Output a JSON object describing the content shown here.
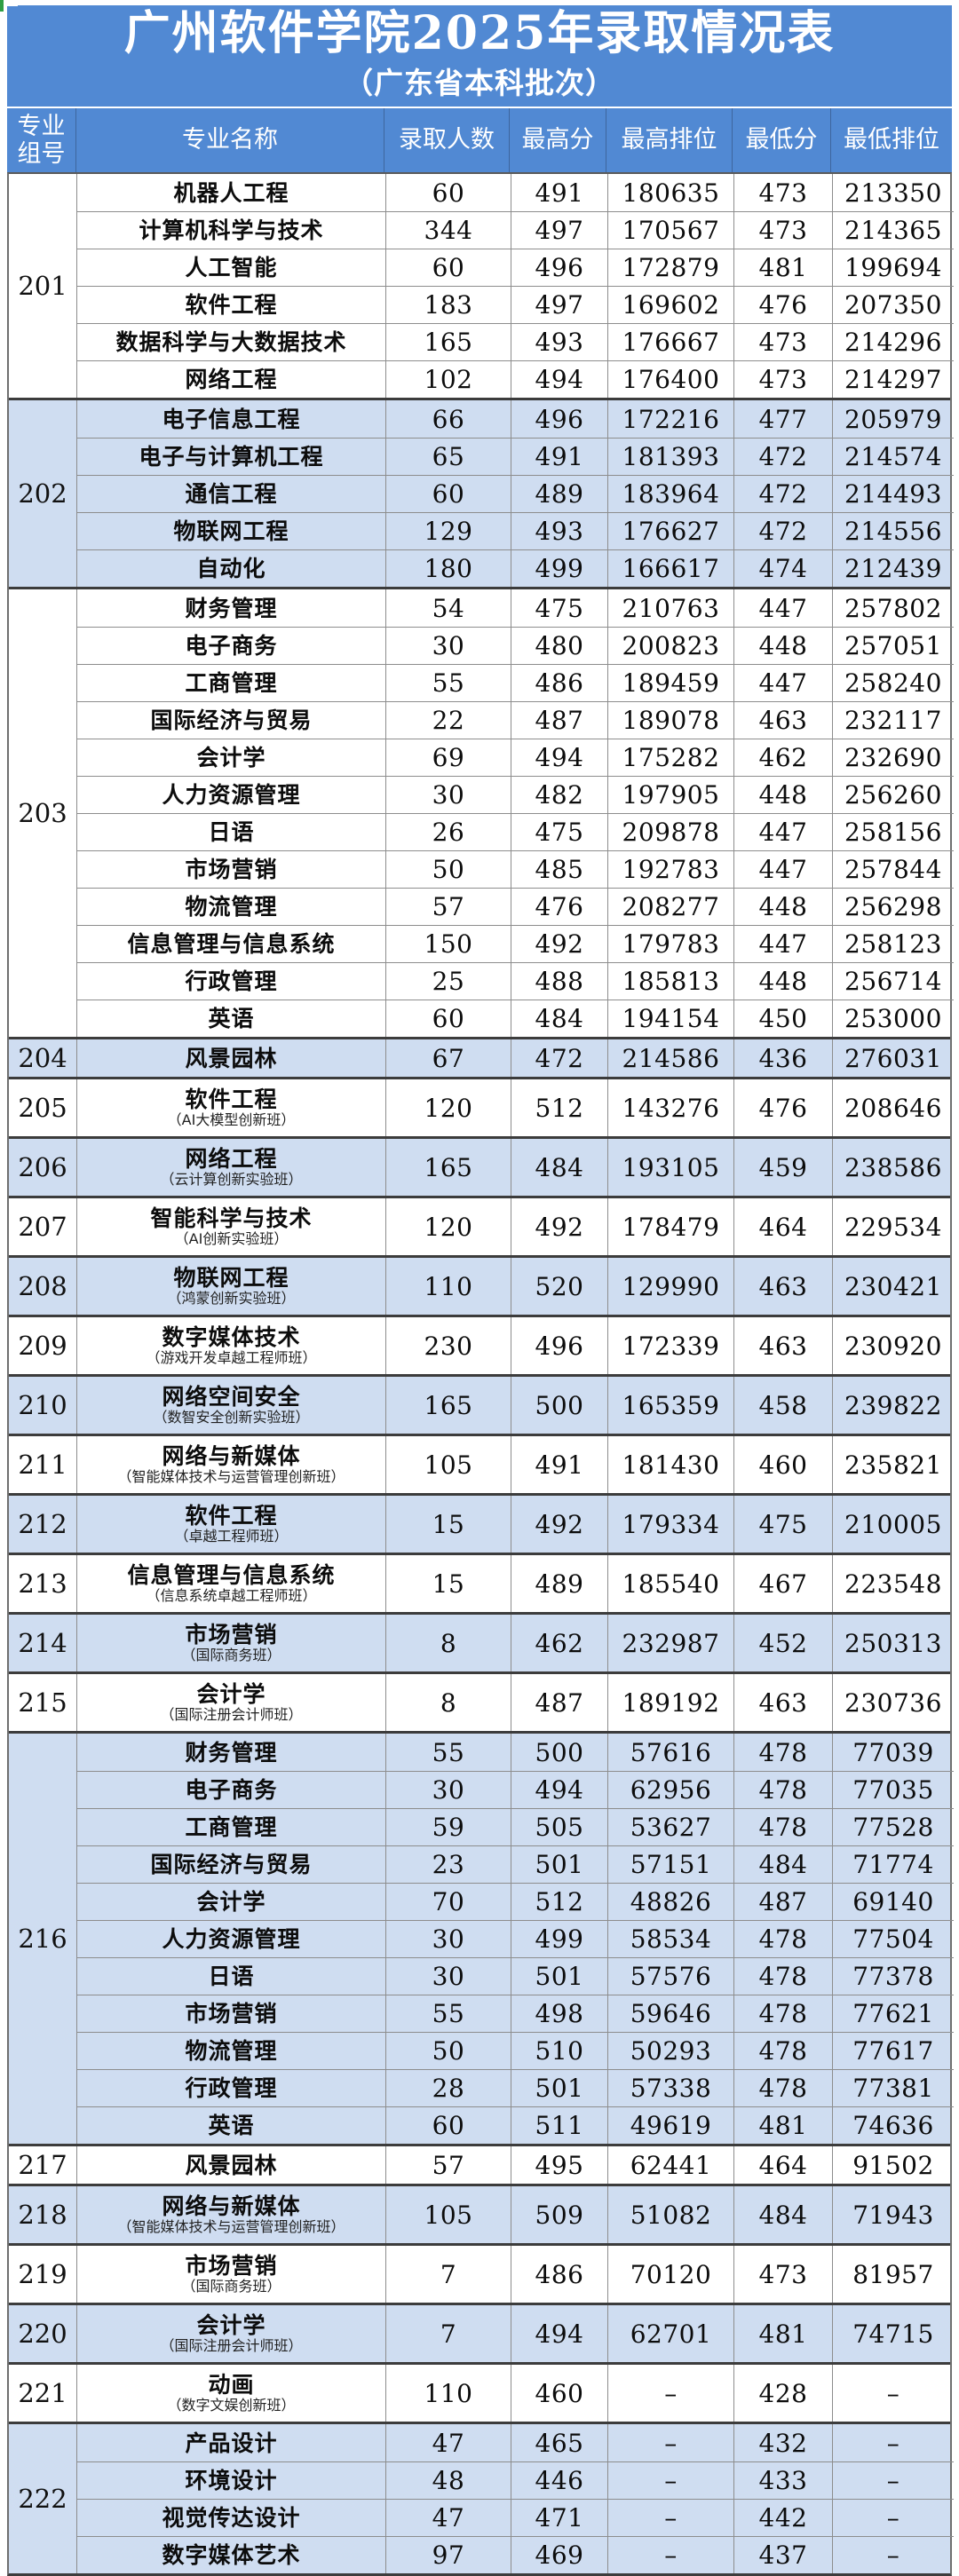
{
  "header": {
    "title": "广州软件学院2025年录取情况表",
    "subtitle": "（广东省本科批次）"
  },
  "columns": {
    "group_line1": "专业",
    "group_line2": "组号",
    "name": "专业名称",
    "admitted": "录取人数",
    "max_score": "最高分",
    "max_rank": "最高排位",
    "min_score": "最低分",
    "min_rank": "最低排位"
  },
  "colors": {
    "header_blue": "#5189d3",
    "row_blue": "#cfddf1",
    "row_white": "#ffffff",
    "grid_thin": "#8d8d8d",
    "grid_thick": "#3c3c3c",
    "artifact_green": "#2f9e44",
    "text_dark": "#0c0c0c",
    "header_text": "#ffffff"
  },
  "groups": [
    {
      "no": "201",
      "tint": "white",
      "rows": [
        {
          "name": "机器人工程",
          "sub": "",
          "admitted": "60",
          "max_score": "491",
          "max_rank": "180635",
          "min_score": "473",
          "min_rank": "213350"
        },
        {
          "name": "计算机科学与技术",
          "sub": "",
          "admitted": "344",
          "max_score": "497",
          "max_rank": "170567",
          "min_score": "473",
          "min_rank": "214365"
        },
        {
          "name": "人工智能",
          "sub": "",
          "admitted": "60",
          "max_score": "496",
          "max_rank": "172879",
          "min_score": "481",
          "min_rank": "199694"
        },
        {
          "name": "软件工程",
          "sub": "",
          "admitted": "183",
          "max_score": "497",
          "max_rank": "169602",
          "min_score": "476",
          "min_rank": "207350"
        },
        {
          "name": "数据科学与大数据技术",
          "sub": "",
          "admitted": "165",
          "max_score": "493",
          "max_rank": "176667",
          "min_score": "473",
          "min_rank": "214296"
        },
        {
          "name": "网络工程",
          "sub": "",
          "admitted": "102",
          "max_score": "494",
          "max_rank": "176400",
          "min_score": "473",
          "min_rank": "214297"
        }
      ]
    },
    {
      "no": "202",
      "tint": "blue",
      "rows": [
        {
          "name": "电子信息工程",
          "sub": "",
          "admitted": "66",
          "max_score": "496",
          "max_rank": "172216",
          "min_score": "477",
          "min_rank": "205979"
        },
        {
          "name": "电子与计算机工程",
          "sub": "",
          "admitted": "65",
          "max_score": "491",
          "max_rank": "181393",
          "min_score": "472",
          "min_rank": "214574"
        },
        {
          "name": "通信工程",
          "sub": "",
          "admitted": "60",
          "max_score": "489",
          "max_rank": "183964",
          "min_score": "472",
          "min_rank": "214493"
        },
        {
          "name": "物联网工程",
          "sub": "",
          "admitted": "129",
          "max_score": "493",
          "max_rank": "176627",
          "min_score": "472",
          "min_rank": "214556"
        },
        {
          "name": "自动化",
          "sub": "",
          "admitted": "180",
          "max_score": "499",
          "max_rank": "166617",
          "min_score": "474",
          "min_rank": "212439"
        }
      ]
    },
    {
      "no": "203",
      "tint": "white",
      "rows": [
        {
          "name": "财务管理",
          "sub": "",
          "admitted": "54",
          "max_score": "475",
          "max_rank": "210763",
          "min_score": "447",
          "min_rank": "257802"
        },
        {
          "name": "电子商务",
          "sub": "",
          "admitted": "30",
          "max_score": "480",
          "max_rank": "200823",
          "min_score": "448",
          "min_rank": "257051"
        },
        {
          "name": "工商管理",
          "sub": "",
          "admitted": "55",
          "max_score": "486",
          "max_rank": "189459",
          "min_score": "447",
          "min_rank": "258240"
        },
        {
          "name": "国际经济与贸易",
          "sub": "",
          "admitted": "22",
          "max_score": "487",
          "max_rank": "189078",
          "min_score": "463",
          "min_rank": "232117"
        },
        {
          "name": "会计学",
          "sub": "",
          "admitted": "69",
          "max_score": "494",
          "max_rank": "175282",
          "min_score": "462",
          "min_rank": "232690"
        },
        {
          "name": "人力资源管理",
          "sub": "",
          "admitted": "30",
          "max_score": "482",
          "max_rank": "197905",
          "min_score": "448",
          "min_rank": "256260"
        },
        {
          "name": "日语",
          "sub": "",
          "admitted": "26",
          "max_score": "475",
          "max_rank": "209878",
          "min_score": "447",
          "min_rank": "258156"
        },
        {
          "name": "市场营销",
          "sub": "",
          "admitted": "50",
          "max_score": "485",
          "max_rank": "192783",
          "min_score": "447",
          "min_rank": "257844"
        },
        {
          "name": "物流管理",
          "sub": "",
          "admitted": "57",
          "max_score": "476",
          "max_rank": "208277",
          "min_score": "448",
          "min_rank": "256298"
        },
        {
          "name": "信息管理与信息系统",
          "sub": "",
          "admitted": "150",
          "max_score": "492",
          "max_rank": "179783",
          "min_score": "447",
          "min_rank": "258123"
        },
        {
          "name": "行政管理",
          "sub": "",
          "admitted": "25",
          "max_score": "488",
          "max_rank": "185813",
          "min_score": "448",
          "min_rank": "256714"
        },
        {
          "name": "英语",
          "sub": "",
          "admitted": "60",
          "max_score": "484",
          "max_rank": "194154",
          "min_score": "450",
          "min_rank": "253000"
        }
      ]
    },
    {
      "no": "204",
      "tint": "blue",
      "rows": [
        {
          "name": "风景园林",
          "sub": "",
          "admitted": "67",
          "max_score": "472",
          "max_rank": "214586",
          "min_score": "436",
          "min_rank": "276031"
        }
      ]
    },
    {
      "no": "205",
      "tint": "white",
      "rows": [
        {
          "name": "软件工程",
          "sub": "（AI大模型创新班）",
          "admitted": "120",
          "max_score": "512",
          "max_rank": "143276",
          "min_score": "476",
          "min_rank": "208646"
        }
      ]
    },
    {
      "no": "206",
      "tint": "blue",
      "rows": [
        {
          "name": "网络工程",
          "sub": "（云计算创新实验班）",
          "admitted": "165",
          "max_score": "484",
          "max_rank": "193105",
          "min_score": "459",
          "min_rank": "238586"
        }
      ]
    },
    {
      "no": "207",
      "tint": "white",
      "rows": [
        {
          "name": "智能科学与技术",
          "sub": "（AI创新实验班）",
          "admitted": "120",
          "max_score": "492",
          "max_rank": "178479",
          "min_score": "464",
          "min_rank": "229534"
        }
      ]
    },
    {
      "no": "208",
      "tint": "blue",
      "rows": [
        {
          "name": "物联网工程",
          "sub": "（鸿蒙创新实验班）",
          "admitted": "110",
          "max_score": "520",
          "max_rank": "129990",
          "min_score": "463",
          "min_rank": "230421"
        }
      ]
    },
    {
      "no": "209",
      "tint": "white",
      "rows": [
        {
          "name": "数字媒体技术",
          "sub": "（游戏开发卓越工程师班）",
          "admitted": "230",
          "max_score": "496",
          "max_rank": "172339",
          "min_score": "463",
          "min_rank": "230920"
        }
      ]
    },
    {
      "no": "210",
      "tint": "blue",
      "rows": [
        {
          "name": "网络空间安全",
          "sub": "（数智安全创新实验班）",
          "admitted": "165",
          "max_score": "500",
          "max_rank": "165359",
          "min_score": "458",
          "min_rank": "239822"
        }
      ]
    },
    {
      "no": "211",
      "tint": "white",
      "rows": [
        {
          "name": "网络与新媒体",
          "sub": "（智能媒体技术与运营管理创新班）",
          "admitted": "105",
          "max_score": "491",
          "max_rank": "181430",
          "min_score": "460",
          "min_rank": "235821"
        }
      ]
    },
    {
      "no": "212",
      "tint": "blue",
      "rows": [
        {
          "name": "软件工程",
          "sub": "（卓越工程师班）",
          "admitted": "15",
          "max_score": "492",
          "max_rank": "179334",
          "min_score": "475",
          "min_rank": "210005"
        }
      ]
    },
    {
      "no": "213",
      "tint": "white",
      "rows": [
        {
          "name": "信息管理与信息系统",
          "sub": "（信息系统卓越工程师班）",
          "admitted": "15",
          "max_score": "489",
          "max_rank": "185540",
          "min_score": "467",
          "min_rank": "223548"
        }
      ]
    },
    {
      "no": "214",
      "tint": "blue",
      "rows": [
        {
          "name": "市场营销",
          "sub": "（国际商务班）",
          "admitted": "8",
          "max_score": "462",
          "max_rank": "232987",
          "min_score": "452",
          "min_rank": "250313"
        }
      ]
    },
    {
      "no": "215",
      "tint": "white",
      "rows": [
        {
          "name": "会计学",
          "sub": "（国际注册会计师班）",
          "admitted": "8",
          "max_score": "487",
          "max_rank": "189192",
          "min_score": "463",
          "min_rank": "230736"
        }
      ]
    },
    {
      "no": "216",
      "tint": "blue",
      "rows": [
        {
          "name": "财务管理",
          "sub": "",
          "admitted": "55",
          "max_score": "500",
          "max_rank": "57616",
          "min_score": "478",
          "min_rank": "77039"
        },
        {
          "name": "电子商务",
          "sub": "",
          "admitted": "30",
          "max_score": "494",
          "max_rank": "62956",
          "min_score": "478",
          "min_rank": "77035"
        },
        {
          "name": "工商管理",
          "sub": "",
          "admitted": "59",
          "max_score": "505",
          "max_rank": "53627",
          "min_score": "478",
          "min_rank": "77528"
        },
        {
          "name": "国际经济与贸易",
          "sub": "",
          "admitted": "23",
          "max_score": "501",
          "max_rank": "57151",
          "min_score": "484",
          "min_rank": "71774"
        },
        {
          "name": "会计学",
          "sub": "",
          "admitted": "70",
          "max_score": "512",
          "max_rank": "48826",
          "min_score": "487",
          "min_rank": "69140"
        },
        {
          "name": "人力资源管理",
          "sub": "",
          "admitted": "30",
          "max_score": "499",
          "max_rank": "58534",
          "min_score": "478",
          "min_rank": "77504"
        },
        {
          "name": "日语",
          "sub": "",
          "admitted": "30",
          "max_score": "501",
          "max_rank": "57576",
          "min_score": "478",
          "min_rank": "77378"
        },
        {
          "name": "市场营销",
          "sub": "",
          "admitted": "55",
          "max_score": "498",
          "max_rank": "59646",
          "min_score": "478",
          "min_rank": "77621"
        },
        {
          "name": "物流管理",
          "sub": "",
          "admitted": "50",
          "max_score": "510",
          "max_rank": "50293",
          "min_score": "478",
          "min_rank": "77617"
        },
        {
          "name": "行政管理",
          "sub": "",
          "admitted": "28",
          "max_score": "501",
          "max_rank": "57338",
          "min_score": "478",
          "min_rank": "77381"
        },
        {
          "name": "英语",
          "sub": "",
          "admitted": "60",
          "max_score": "511",
          "max_rank": "49619",
          "min_score": "481",
          "min_rank": "74636"
        }
      ]
    },
    {
      "no": "217",
      "tint": "white",
      "rows": [
        {
          "name": "风景园林",
          "sub": "",
          "admitted": "57",
          "max_score": "495",
          "max_rank": "62441",
          "min_score": "464",
          "min_rank": "91502"
        }
      ]
    },
    {
      "no": "218",
      "tint": "blue",
      "rows": [
        {
          "name": "网络与新媒体",
          "sub": "（智能媒体技术与运营管理创新班）",
          "admitted": "105",
          "max_score": "509",
          "max_rank": "51082",
          "min_score": "484",
          "min_rank": "71943"
        }
      ]
    },
    {
      "no": "219",
      "tint": "white",
      "rows": [
        {
          "name": "市场营销",
          "sub": "（国际商务班）",
          "admitted": "7",
          "max_score": "486",
          "max_rank": "70120",
          "min_score": "473",
          "min_rank": "81957"
        }
      ]
    },
    {
      "no": "220",
      "tint": "blue",
      "rows": [
        {
          "name": "会计学",
          "sub": "（国际注册会计师班）",
          "admitted": "7",
          "max_score": "494",
          "max_rank": "62701",
          "min_score": "481",
          "min_rank": "74715"
        }
      ]
    },
    {
      "no": "221",
      "tint": "white",
      "rows": [
        {
          "name": "动画",
          "sub": "（数字文娱创新班）",
          "admitted": "110",
          "max_score": "460",
          "max_rank": "–",
          "min_score": "428",
          "min_rank": "–"
        }
      ]
    },
    {
      "no": "222",
      "tint": "blue",
      "rows": [
        {
          "name": "产品设计",
          "sub": "",
          "admitted": "47",
          "max_score": "465",
          "max_rank": "–",
          "min_score": "432",
          "min_rank": "–"
        },
        {
          "name": "环境设计",
          "sub": "",
          "admitted": "48",
          "max_score": "446",
          "max_rank": "–",
          "min_score": "433",
          "min_rank": "–"
        },
        {
          "name": "视觉传达设计",
          "sub": "",
          "admitted": "47",
          "max_score": "471",
          "max_rank": "–",
          "min_score": "442",
          "min_rank": "–"
        },
        {
          "name": "数字媒体艺术",
          "sub": "",
          "admitted": "97",
          "max_score": "469",
          "max_rank": "–",
          "min_score": "437",
          "min_rank": "–"
        }
      ]
    }
  ]
}
